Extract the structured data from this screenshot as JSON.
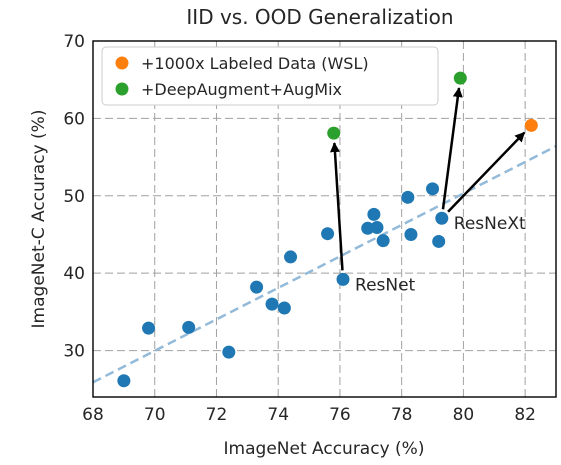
{
  "chart_data": {
    "type": "scatter",
    "title": "IID vs. OOD Generalization",
    "xlabel": "ImageNet Accuracy (%)",
    "ylabel": "ImageNet-C Accuracy (%)",
    "xlim": [
      68,
      83
    ],
    "ylim": [
      24,
      70
    ],
    "xticks": [
      68,
      70,
      72,
      74,
      76,
      78,
      80,
      82
    ],
    "yticks": [
      30,
      40,
      50,
      60,
      70
    ],
    "grid": true,
    "legend_position": "top-left",
    "colors": {
      "models": "#1f77b4",
      "wsl": "#ff7f0e",
      "deepaugment": "#2ca02c",
      "trend": "#93bad9",
      "arrow": "#000000"
    },
    "series": [
      {
        "name": "",
        "color": "#1f77b4",
        "points": [
          {
            "x": 69.0,
            "y": 26.1
          },
          {
            "x": 69.8,
            "y": 32.9
          },
          {
            "x": 71.1,
            "y": 33.0
          },
          {
            "x": 72.4,
            "y": 29.8
          },
          {
            "x": 73.3,
            "y": 38.2
          },
          {
            "x": 73.8,
            "y": 36.0
          },
          {
            "x": 74.2,
            "y": 35.5
          },
          {
            "x": 74.4,
            "y": 42.1
          },
          {
            "x": 75.6,
            "y": 45.1
          },
          {
            "x": 76.1,
            "y": 39.2
          },
          {
            "x": 76.9,
            "y": 45.8
          },
          {
            "x": 77.1,
            "y": 47.6
          },
          {
            "x": 77.2,
            "y": 45.9
          },
          {
            "x": 77.4,
            "y": 44.2
          },
          {
            "x": 78.2,
            "y": 49.8
          },
          {
            "x": 78.3,
            "y": 45.0
          },
          {
            "x": 79.0,
            "y": 50.9
          },
          {
            "x": 79.2,
            "y": 44.1
          },
          {
            "x": 79.3,
            "y": 47.1
          }
        ]
      },
      {
        "name": "+1000x Labeled Data (WSL)",
        "color": "#ff7f0e",
        "points": [
          {
            "x": 82.2,
            "y": 59.1
          }
        ]
      },
      {
        "name": "+DeepAugment+AugMix",
        "color": "#2ca02c",
        "points": [
          {
            "x": 75.8,
            "y": 58.1
          },
          {
            "x": 79.9,
            "y": 65.2
          }
        ]
      }
    ],
    "trendline": {
      "style": "dashed",
      "from": {
        "x": 68,
        "y": 25.9
      },
      "to": {
        "x": 83,
        "y": 56.4
      }
    },
    "arrows": [
      {
        "from": {
          "x": 76.1,
          "y": 39.2
        },
        "to": {
          "x": 75.8,
          "y": 58.1
        }
      },
      {
        "from": {
          "x": 79.3,
          "y": 47.1
        },
        "to": {
          "x": 79.9,
          "y": 65.2
        }
      },
      {
        "from": {
          "x": 79.3,
          "y": 47.1
        },
        "to": {
          "x": 82.2,
          "y": 59.1
        }
      }
    ],
    "annotations": [
      {
        "text": "ResNet",
        "x": 76.1,
        "y": 39.2
      },
      {
        "text": "ResNeXt",
        "x": 79.3,
        "y": 47.1
      }
    ]
  }
}
